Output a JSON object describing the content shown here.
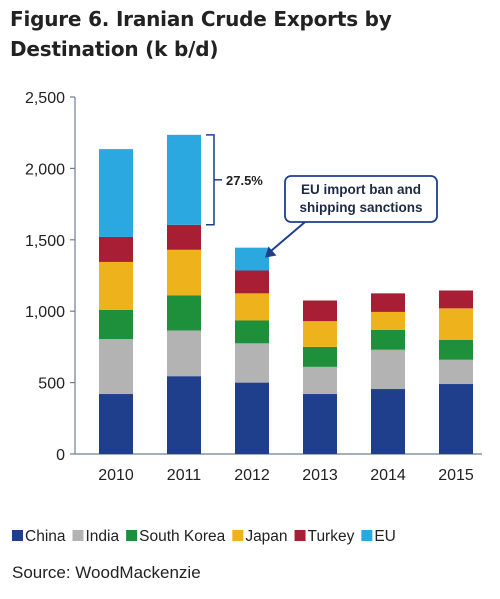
{
  "title": "Figure 6. Iranian Crude Exports by Destination (k b/d)",
  "source": "Source: WoodMackenzie",
  "colors": {
    "China": "#1f3f8c",
    "India": "#b3b3b3",
    "South Korea": "#1e8f3a",
    "Japan": "#eeb21c",
    "Turkey": "#a81e34",
    "EU": "#2ca8e0",
    "annotation": "#1f3f8c"
  },
  "chart_data": {
    "type": "bar",
    "stacked": true,
    "categories": [
      "2010",
      "2011",
      "2012",
      "2013",
      "2014",
      "2015"
    ],
    "series": [
      {
        "name": "China",
        "values": [
          420,
          545,
          500,
          420,
          455,
          490
        ]
      },
      {
        "name": "India",
        "values": [
          385,
          320,
          275,
          190,
          275,
          170
        ]
      },
      {
        "name": "South Korea",
        "values": [
          205,
          245,
          160,
          140,
          140,
          140
        ]
      },
      {
        "name": "Japan",
        "values": [
          335,
          320,
          190,
          180,
          125,
          220
        ]
      },
      {
        "name": "Turkey",
        "values": [
          175,
          175,
          160,
          145,
          130,
          125
        ]
      },
      {
        "name": "EU",
        "values": [
          615,
          630,
          160,
          0,
          0,
          0
        ]
      }
    ],
    "yticks": [
      "0",
      "500",
      "1,000",
      "1,500",
      "2,000",
      "2,500"
    ],
    "ylim": [
      0,
      2500
    ],
    "grid": false,
    "legend": "bottom",
    "annotations": {
      "percent": "27.5%",
      "callout": [
        "EU import ban and",
        "shipping sanctions"
      ]
    }
  }
}
